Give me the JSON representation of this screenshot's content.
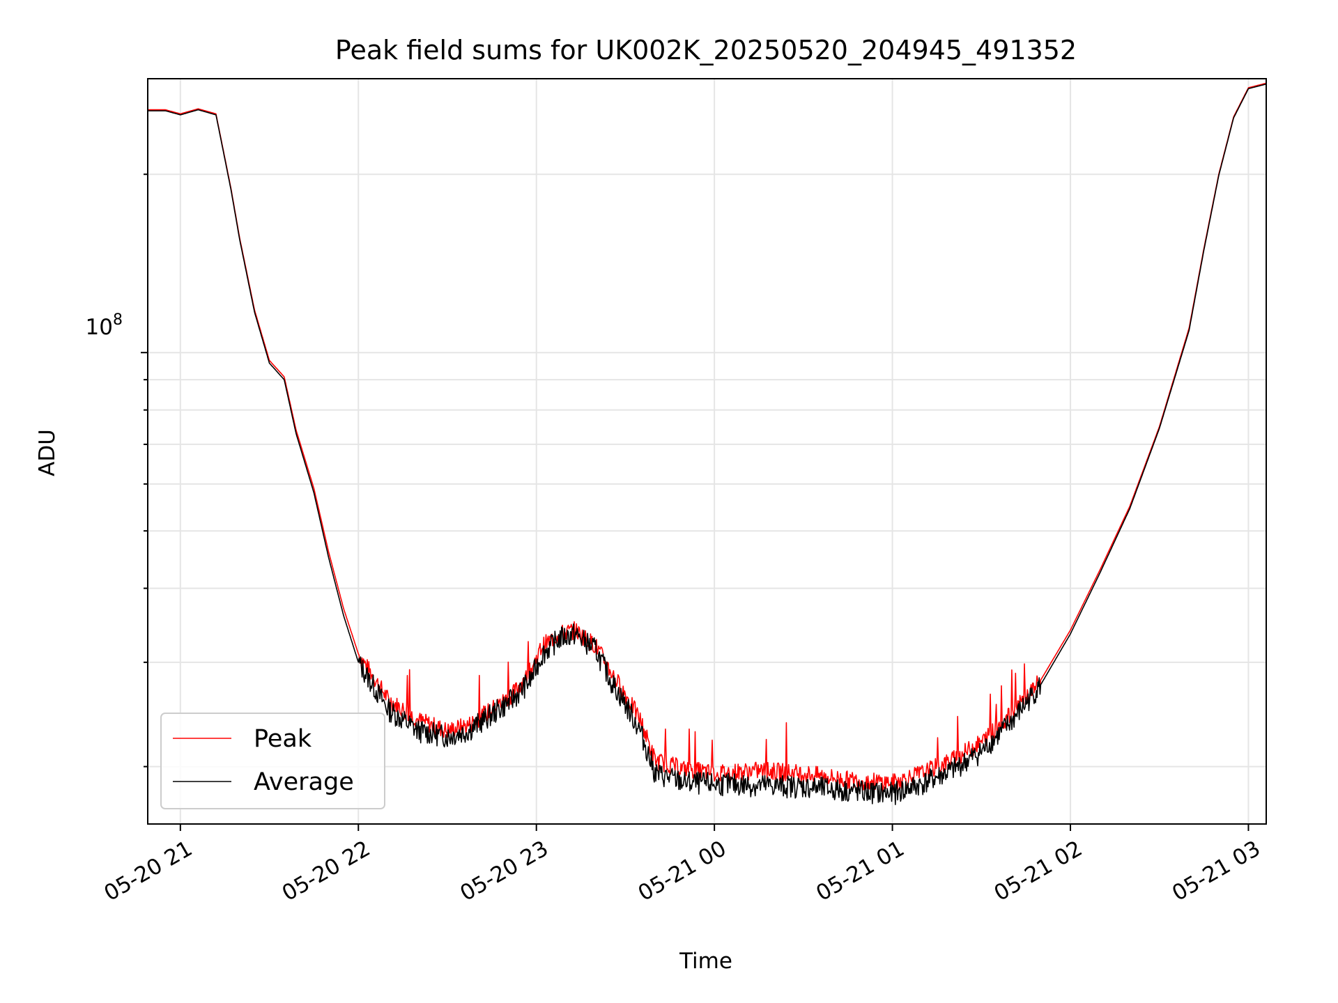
{
  "chart_data": {
    "type": "line",
    "title": "Peak field sums for UK002K_20250520_204945_491352",
    "xlabel": "Time",
    "ylabel": "ADU",
    "y_scale": "log",
    "grid": true,
    "legend_position": "lower-left",
    "x_ticks": [
      "05-20 21",
      "05-20 22",
      "05-20 23",
      "05-21 00",
      "05-21 01",
      "05-21 02",
      "05-21 03"
    ],
    "y_tick_label": {
      "base": "10",
      "exponent": "8",
      "value": 100000000
    },
    "xlim": [
      "2025-05-20 20:49",
      "2025-05-21 03:06"
    ],
    "ylim": [
      16000000,
      290000000
    ],
    "series": [
      {
        "name": "Peak",
        "color": "#ff0000",
        "x": [
          "2025-05-20 20:49",
          "2025-05-20 20:55",
          "2025-05-20 21:00",
          "2025-05-20 21:06",
          "2025-05-20 21:12",
          "2025-05-20 21:17",
          "2025-05-20 21:20",
          "2025-05-20 21:25",
          "2025-05-20 21:30",
          "2025-05-20 21:35",
          "2025-05-20 21:39",
          "2025-05-20 21:45",
          "2025-05-20 21:50",
          "2025-05-20 21:55",
          "2025-05-20 22:00",
          "2025-05-20 22:10",
          "2025-05-20 22:20",
          "2025-05-20 22:30",
          "2025-05-20 22:37",
          "2025-05-20 22:45",
          "2025-05-20 22:52",
          "2025-05-20 22:58",
          "2025-05-20 23:02",
          "2025-05-20 23:08",
          "2025-05-20 23:13",
          "2025-05-20 23:20",
          "2025-05-20 23:25",
          "2025-05-20 23:30",
          "2025-05-20 23:35",
          "2025-05-20 23:40",
          "2025-05-20 23:50",
          "2025-05-21 00:00",
          "2025-05-21 00:15",
          "2025-05-21 00:30",
          "2025-05-21 00:45",
          "2025-05-21 01:00",
          "2025-05-21 01:10",
          "2025-05-21 01:20",
          "2025-05-21 01:30",
          "2025-05-21 01:40",
          "2025-05-21 01:50",
          "2025-05-21 02:00",
          "2025-05-21 02:10",
          "2025-05-21 02:20",
          "2025-05-21 02:30",
          "2025-05-21 02:40",
          "2025-05-21 02:45",
          "2025-05-21 02:50",
          "2025-05-21 02:55",
          "2025-05-21 03:00",
          "2025-05-21 03:06"
        ],
        "values": [
          257000000,
          257000000,
          253000000,
          258000000,
          253000000,
          190000000,
          156000000,
          118000000,
          97000000,
          91000000,
          74000000,
          59000000,
          46000000,
          37000000,
          31000000,
          26000000,
          24000000,
          23000000,
          23500000,
          25000000,
          26500000,
          29000000,
          32000000,
          33500000,
          34000000,
          32000000,
          29000000,
          26500000,
          24000000,
          20500000,
          19800000,
          19500000,
          19700000,
          19500000,
          19000000,
          18800000,
          19500000,
          20500000,
          22000000,
          24500000,
          28000000,
          34000000,
          43000000,
          55000000,
          75000000,
          110000000,
          150000000,
          200000000,
          250000000,
          280000000,
          285000000
        ]
      },
      {
        "name": "Average",
        "color": "#000000",
        "x": [
          "2025-05-20 20:49",
          "2025-05-20 20:55",
          "2025-05-20 21:00",
          "2025-05-20 21:06",
          "2025-05-20 21:12",
          "2025-05-20 21:17",
          "2025-05-20 21:20",
          "2025-05-20 21:25",
          "2025-05-20 21:30",
          "2025-05-20 21:35",
          "2025-05-20 21:39",
          "2025-05-20 21:45",
          "2025-05-20 21:50",
          "2025-05-20 21:55",
          "2025-05-20 22:00",
          "2025-05-20 22:10",
          "2025-05-20 22:20",
          "2025-05-20 22:30",
          "2025-05-20 22:37",
          "2025-05-20 22:45",
          "2025-05-20 22:52",
          "2025-05-20 22:58",
          "2025-05-20 23:02",
          "2025-05-20 23:08",
          "2025-05-20 23:13",
          "2025-05-20 23:20",
          "2025-05-20 23:25",
          "2025-05-20 23:30",
          "2025-05-20 23:35",
          "2025-05-20 23:40",
          "2025-05-20 23:50",
          "2025-05-21 00:00",
          "2025-05-21 00:15",
          "2025-05-21 00:30",
          "2025-05-21 00:45",
          "2025-05-21 01:00",
          "2025-05-21 01:10",
          "2025-05-21 01:20",
          "2025-05-21 01:30",
          "2025-05-21 01:40",
          "2025-05-21 01:50",
          "2025-05-21 02:00",
          "2025-05-21 02:10",
          "2025-05-21 02:20",
          "2025-05-21 02:30",
          "2025-05-21 02:40",
          "2025-05-21 02:45",
          "2025-05-21 02:50",
          "2025-05-21 02:55",
          "2025-05-21 03:00",
          "2025-05-21 03:06"
        ],
        "values": [
          256000000,
          256000000,
          252000000,
          257000000,
          252000000,
          189000000,
          155000000,
          117000000,
          96000000,
          90000000,
          73000000,
          58000000,
          45000000,
          36000000,
          30000000,
          25000000,
          23000000,
          22500000,
          23000000,
          24500000,
          26000000,
          28000000,
          31000000,
          33000000,
          33500000,
          31500000,
          28000000,
          25500000,
          23000000,
          19500000,
          18800000,
          18700000,
          18600000,
          18500000,
          18200000,
          18000000,
          18700000,
          19700000,
          21200000,
          23800000,
          27500000,
          33500000,
          42500000,
          54500000,
          74500000,
          109000000,
          149000000,
          199000000,
          249000000,
          279000000,
          284000000
        ]
      }
    ]
  }
}
